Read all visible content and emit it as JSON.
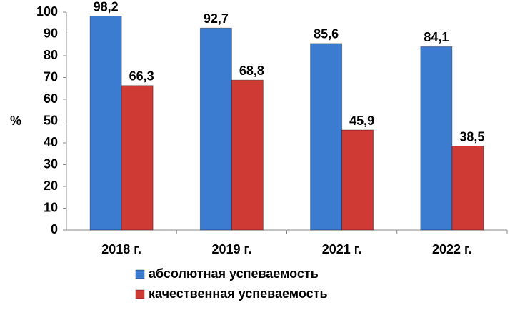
{
  "chart_data": {
    "type": "bar",
    "y_label": "%",
    "categories": [
      "2018 г.",
      "2019 г.",
      "2021 г.",
      "2022 г."
    ],
    "series": [
      {
        "name": "абсолютная успеваемость",
        "color": "#3b7bd0",
        "values": [
          98.2,
          92.7,
          85.6,
          84.1
        ],
        "value_labels": [
          "98,2",
          "92,7",
          "85,6",
          "84,1"
        ]
      },
      {
        "name": "качественная успеваемость",
        "color": "#cf3a35",
        "values": [
          66.3,
          68.8,
          45.9,
          38.5
        ],
        "value_labels": [
          "66,3",
          "68,8",
          "45,9",
          "38,5"
        ]
      }
    ],
    "ylim": [
      0,
      100
    ],
    "yticks": [
      0,
      10,
      20,
      30,
      40,
      50,
      60,
      70,
      80,
      90,
      100
    ],
    "grid": false,
    "legend": "bottom"
  }
}
